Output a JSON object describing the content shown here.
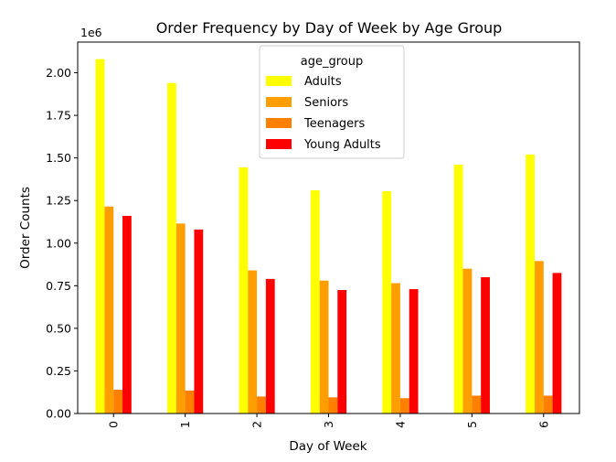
{
  "chart_data": {
    "type": "bar",
    "title": "Order Frequency by Day of Week by Age Group",
    "xlabel": "Day of Week",
    "ylabel": "Order Counts",
    "y_offset_label": "1e6",
    "categories": [
      "0",
      "1",
      "2",
      "3",
      "4",
      "5",
      "6"
    ],
    "yticks": [
      "0.00",
      "0.25",
      "0.50",
      "0.75",
      "1.00",
      "1.25",
      "1.50",
      "1.75",
      "2.00"
    ],
    "ylim": [
      0,
      2.18
    ],
    "legend_title": "age_group",
    "legend_position": "top-center",
    "grid": false,
    "series": [
      {
        "name": "Adults",
        "color": "#ffff00",
        "values": [
          2.08,
          1.94,
          1.445,
          1.31,
          1.305,
          1.46,
          1.52
        ]
      },
      {
        "name": "Seniors",
        "color": "#ff9e00",
        "values": [
          1.215,
          1.115,
          0.84,
          0.78,
          0.765,
          0.85,
          0.895
        ]
      },
      {
        "name": "Teenagers",
        "color": "#ff8000",
        "values": [
          0.14,
          0.135,
          0.1,
          0.095,
          0.09,
          0.105,
          0.105
        ]
      },
      {
        "name": "Young Adults",
        "color": "#ff0000",
        "values": [
          1.16,
          1.08,
          0.79,
          0.725,
          0.73,
          0.8,
          0.825
        ]
      }
    ]
  }
}
